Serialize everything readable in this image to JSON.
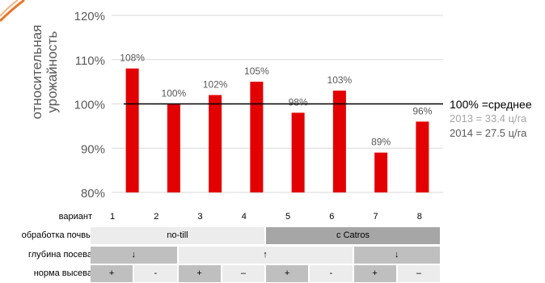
{
  "chart_data": {
    "type": "bar",
    "categories": [
      "1",
      "2",
      "3",
      "4",
      "5",
      "6",
      "7",
      "8"
    ],
    "values": [
      108,
      100,
      102,
      105,
      98,
      103,
      89,
      96
    ],
    "value_labels": [
      "108%",
      "100%",
      "102%",
      "105%",
      "98%",
      "103%",
      "89%",
      "96%"
    ],
    "ylabel": "относительная\nурожайность",
    "ylim": [
      80,
      120
    ],
    "yticks": [
      "80%",
      "90%",
      "100%",
      "110%",
      "120%"
    ],
    "ytick_values": [
      80,
      90,
      100,
      110,
      120
    ],
    "reference_line": 100,
    "grid": true,
    "bar_color": "#e30000"
  },
  "legend": {
    "main": "100% =среднее",
    "y2013": "2013 = 33.4 ц/га",
    "y2014": "2014 = 27.5 ц/га"
  },
  "table": {
    "variant_label": "вариант",
    "tillage_label": "обработка почвы",
    "depth_label": "глубина посева",
    "rate_label": "норма высева",
    "tillage": [
      {
        "text": "no-till",
        "color": "#ececec"
      },
      {
        "text": "с Catros",
        "color": "#a6a6a6"
      }
    ],
    "depth": [
      {
        "text": "↓",
        "color": "#bfbfbf"
      },
      {
        "text": "↑",
        "color": "#ececec"
      },
      {
        "text": "↓",
        "color": "#bfbfbf"
      }
    ],
    "rate": [
      {
        "text": "+",
        "color": "#bfbfbf"
      },
      {
        "text": "-",
        "color": "#ececec"
      },
      {
        "text": "+",
        "color": "#bfbfbf"
      },
      {
        "text": "–",
        "color": "#ececec"
      },
      {
        "text": "+",
        "color": "#bfbfbf"
      },
      {
        "text": "-",
        "color": "#ececec"
      },
      {
        "text": "+",
        "color": "#bfbfbf"
      },
      {
        "text": "–",
        "color": "#ececec"
      }
    ]
  }
}
